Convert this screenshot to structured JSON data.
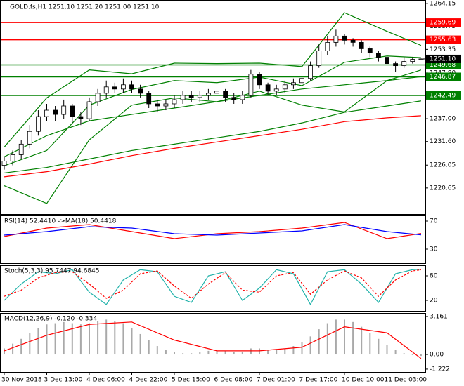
{
  "chart_data": {
    "type": "candlestick",
    "title": "GOLD.fs,H1  1251.10 1251.20 1251.00 1251.10",
    "categories": [
      "30 Nov 2018",
      null,
      null,
      null,
      null,
      "3 Dec 13:00",
      null,
      null,
      null,
      null,
      "4 Dec 06:00",
      null,
      null,
      null,
      null,
      "4 Dec 22:00",
      null,
      null,
      null,
      null,
      "5 Dec 15:00",
      null,
      null,
      null,
      null,
      "6 Dec 08:00",
      null,
      null,
      null,
      null,
      "7 Dec 01:00",
      null,
      null,
      null,
      null,
      "7 Dec 17:00",
      null,
      null,
      null,
      null,
      "10 Dec 10:00",
      null,
      null,
      null,
      null,
      "11 Dec 03:00",
      null,
      null,
      null,
      null
    ],
    "open": [
      1226,
      1227,
      1228.5,
      1231,
      1234,
      1237.5,
      1239,
      1238,
      1240,
      1237.5,
      1237,
      1241,
      1243,
      1244.5,
      1244,
      1245,
      1244,
      1243,
      1240.5,
      1240,
      1240.5,
      1241.5,
      1242.5,
      1242,
      1242.5,
      1243,
      1243.5,
      1242,
      1241.5,
      1242.5,
      1247.5,
      1245,
      1243.5,
      1244,
      1245,
      1245.5,
      1246.5,
      1249.5,
      1253,
      1255,
      1256.5,
      1255.5,
      1255,
      1253.5,
      1252.5,
      1251.5,
      1250,
      1249.5,
      1250.5,
      1251.1
    ],
    "high": [
      1228,
      1229.5,
      1232,
      1235.5,
      1239,
      1240.5,
      1240,
      1241.5,
      1240.5,
      1238.5,
      1242,
      1244,
      1246,
      1245.5,
      1246.5,
      1246,
      1245,
      1243.5,
      1241.5,
      1241.5,
      1242.5,
      1243.5,
      1243.5,
      1243.5,
      1244,
      1244.5,
      1244,
      1243,
      1243.5,
      1248.5,
      1248,
      1245.5,
      1245,
      1246,
      1246.5,
      1247.5,
      1250.5,
      1254.5,
      1256.5,
      1258,
      1257,
      1256,
      1255.5,
      1254,
      1253,
      1252,
      1250.5,
      1251.5,
      1251.5,
      1251.2
    ],
    "low": [
      1225,
      1226,
      1227.5,
      1230,
      1233,
      1236.5,
      1236.5,
      1237,
      1236,
      1235.5,
      1236.5,
      1240,
      1242,
      1243,
      1243,
      1243,
      1242,
      1239.5,
      1238.5,
      1239,
      1239.5,
      1240.5,
      1241,
      1241,
      1241.5,
      1242,
      1241,
      1240.5,
      1240.5,
      1242,
      1244,
      1242.5,
      1242.5,
      1243,
      1244,
      1245,
      1246,
      1249,
      1252,
      1254,
      1254.5,
      1254,
      1252.5,
      1251.5,
      1250.5,
      1249,
      1248,
      1249,
      1250,
      1251.0
    ],
    "close": [
      1227,
      1228.5,
      1231,
      1234,
      1237.5,
      1239,
      1238,
      1240,
      1237.5,
      1237,
      1241,
      1243,
      1244.5,
      1244,
      1245,
      1244,
      1243,
      1240.5,
      1240,
      1240.5,
      1241.5,
      1242.5,
      1242,
      1242.5,
      1243,
      1243.5,
      1242,
      1241.5,
      1242.5,
      1247.5,
      1245,
      1243.5,
      1244,
      1245,
      1245.5,
      1246.5,
      1249.5,
      1253,
      1255,
      1256.5,
      1255.5,
      1255,
      1253.5,
      1252.5,
      1251.5,
      1250,
      1249.5,
      1250.5,
      1251,
      1251.1
    ],
    "up_color": "#ffffff",
    "down_color": "#000000",
    "wick_color": "#000000",
    "ylim": [
      1214.5,
      1265.0
    ],
    "yticks": [
      1264.15,
      1258.75,
      1253.35,
      {
        "value": 1247.8,
        "label": "1247.80"
      },
      {
        "value": 1237.0,
        "label": "1237.00"
      },
      {
        "value": 1231.6,
        "label": "1231.60"
      },
      1226.05,
      1220.65
    ],
    "overlays": [
      {
        "color": "#008000",
        "x": [
          0,
          5,
          10,
          15,
          20,
          25,
          30,
          35,
          40,
          45,
          49
        ],
        "values": [
          1230.3,
          1241.9,
          1248.5,
          1247.6,
          1250.1,
          1250,
          1250.1,
          1249.3,
          1262,
          1257.6,
          1254.3
        ]
      },
      {
        "color": "#008000",
        "x": [
          0,
          5,
          10,
          15,
          20,
          25,
          30,
          35,
          40,
          45,
          49
        ],
        "values": [
          1225.9,
          1229.5,
          1240.2,
          1243.9,
          1246,
          1245.5,
          1246.8,
          1244.8,
          1250.3,
          1251.8,
          1251.4
        ]
      },
      {
        "color": "#008000",
        "x": [
          0,
          5,
          10,
          15,
          20,
          25,
          30,
          35,
          40,
          45,
          49
        ],
        "values": [
          1221.2,
          1217,
          1232,
          1240.2,
          1241.9,
          1241,
          1243.5,
          1240.2,
          1238.6,
          1246,
          1248.5
        ]
      },
      {
        "color": "#008000",
        "x": [
          0,
          5,
          10,
          15,
          20,
          25,
          30,
          35,
          40,
          45,
          49
        ],
        "values": [
          1228,
          1233,
          1236.5,
          1238,
          1239.5,
          1241,
          1242.5,
          1244,
          1245,
          1246,
          1246.9
        ]
      },
      {
        "color": "#008000",
        "x": [
          0,
          5,
          10,
          15,
          20,
          25,
          30,
          35,
          40,
          45,
          49
        ],
        "values": [
          1224.2,
          1225.5,
          1227.5,
          1229.5,
          1231,
          1232.5,
          1234,
          1236,
          1238.5,
          1240,
          1241.2
        ]
      },
      {
        "color": "#ff0000",
        "x": [
          0,
          5,
          10,
          15,
          20,
          25,
          30,
          35,
          40,
          45,
          49
        ],
        "values": [
          1223.3,
          1224.5,
          1226.3,
          1228.3,
          1230,
          1231.5,
          1233,
          1234.5,
          1236.3,
          1237.2,
          1237.7
        ]
      }
    ],
    "levels": [
      {
        "value": 1259.69,
        "color": "#ff0000"
      },
      {
        "value": 1255.63,
        "color": "#ff0000"
      },
      {
        "value": 1249.68,
        "color": "#008000"
      },
      {
        "value": 1246.87,
        "color": "#008000"
      },
      {
        "value": 1242.49,
        "color": "#008000"
      }
    ],
    "current_price": {
      "value": 1251.1,
      "label": "1251.10"
    },
    "indicators": [
      {
        "title": "RSI(14) 52.4410 ->MA(18) 50.4418",
        "ylim": [
          10,
          78
        ],
        "yticks": [
          70,
          30
        ],
        "series": [
          {
            "color": "#ff0000",
            "x": [
              0,
              5,
              10,
              15,
              20,
              25,
              30,
              35,
              40,
              45,
              49
            ],
            "values": [
              48,
              60,
              65,
              55,
              45,
              52,
              55,
              60,
              68,
              45,
              52.4
            ]
          },
          {
            "color": "#0000ff",
            "x": [
              0,
              5,
              10,
              15,
              20,
              25,
              30,
              35,
              40,
              45,
              49
            ],
            "values": [
              50,
              55,
              62,
              60,
              52,
              50,
              53,
              56,
              65,
              55,
              50.4
            ]
          }
        ]
      },
      {
        "title": "Stoch(5,3,3) 95.7447 94.6845",
        "ylim": [
          -5.7,
          105.7
        ],
        "yticks": [
          80,
          20
        ],
        "series": [
          {
            "color": "#20b2aa",
            "x": [
              0,
              2,
              4,
              6,
              8,
              10,
              12,
              14,
              16,
              18,
              20,
              22,
              24,
              26,
              28,
              30,
              32,
              34,
              36,
              38,
              40,
              42,
              44,
              46,
              48,
              49
            ],
            "values": [
              20,
              60,
              90,
              85,
              95,
              40,
              10,
              70,
              95,
              90,
              30,
              15,
              80,
              90,
              20,
              50,
              95,
              85,
              10,
              90,
              95,
              60,
              15,
              85,
              95,
              95.7
            ]
          },
          {
            "color": "#ff0000",
            "dashed": true,
            "x": [
              0,
              2,
              4,
              6,
              8,
              10,
              12,
              14,
              16,
              18,
              20,
              22,
              24,
              26,
              28,
              30,
              32,
              34,
              36,
              38,
              40,
              42,
              44,
              46,
              48,
              49
            ],
            "values": [
              30,
              45,
              75,
              88,
              90,
              60,
              25,
              45,
              85,
              92,
              55,
              25,
              60,
              88,
              45,
              40,
              80,
              88,
              35,
              70,
              92,
              75,
              30,
              70,
              92,
              94.7
            ]
          }
        ]
      },
      {
        "title": "MACD(12,26,9) -0.120 -0.334",
        "ylim": [
          -1.46,
          3.45
        ],
        "yticks": [
          3.161,
          {
            "value": 0,
            "label": "0.00"
          },
          -1.222
        ],
        "series": [
          {
            "color": "#a9a9a9",
            "histogram": true,
            "values": [
              0.5,
              0.9,
              1.3,
              1.8,
              2.2,
              2.5,
              2.6,
              2.7,
              2.6,
              2.5,
              2.6,
              2.8,
              2.9,
              2.8,
              2.6,
              2.2,
              1.7,
              1.2,
              0.7,
              0.4,
              0.2,
              0.1,
              0.1,
              0.2,
              0.3,
              0.3,
              0.3,
              0.2,
              0.2,
              0.5,
              0.5,
              0.4,
              0.4,
              0.5,
              0.7,
              1.0,
              1.5,
              2.1,
              2.6,
              2.9,
              2.9,
              2.7,
              2.3,
              1.8,
              1.3,
              0.8,
              0.4,
              0.1,
              -0.05,
              -0.12
            ]
          },
          {
            "color": "#ff0000",
            "x": [
              0,
              5,
              10,
              15,
              20,
              25,
              30,
              35,
              40,
              45,
              49
            ],
            "values": [
              0.3,
              1.6,
              2.5,
              2.7,
              1.2,
              0.3,
              0.3,
              0.6,
              2.3,
              1.8,
              -0.334
            ]
          }
        ]
      }
    ]
  }
}
